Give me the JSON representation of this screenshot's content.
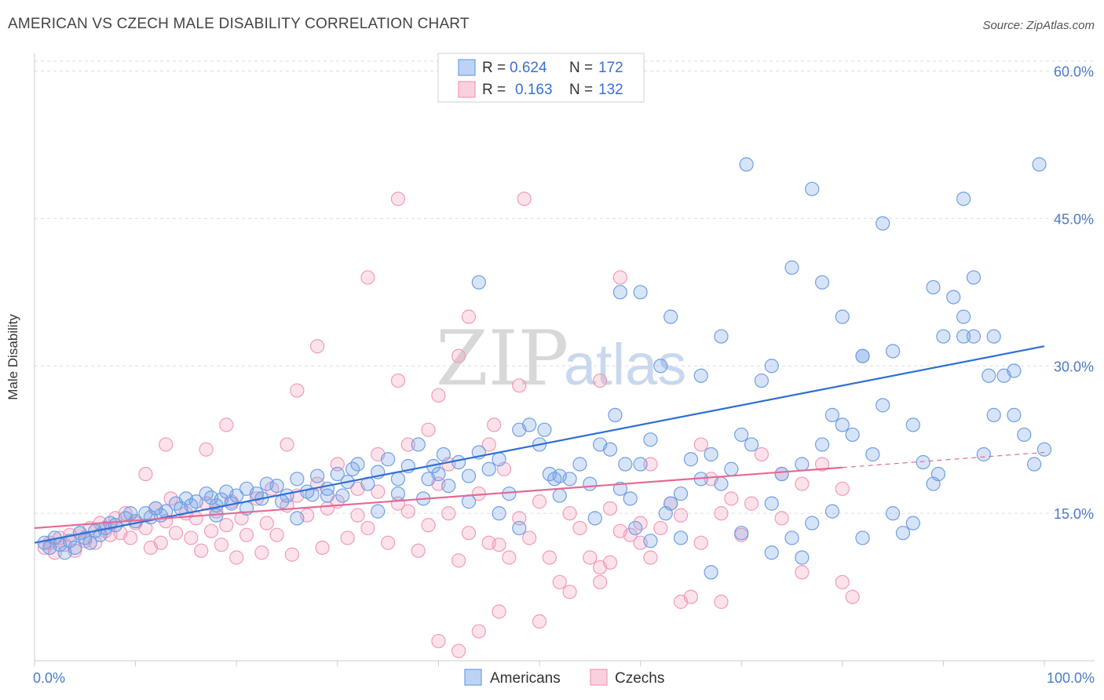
{
  "title": "AMERICAN VS CZECH MALE DISABILITY CORRELATION CHART",
  "source": "Source: ZipAtlas.com",
  "watermark": {
    "zip": "ZIP",
    "atlas": "atlas"
  },
  "colors": {
    "americans": "#6f9fe6",
    "czechs": "#f49ab7",
    "americans_line": "#2f6fd3",
    "czechs_line": "#e36a95",
    "grid": "#dddddd",
    "tick_text": "#4a7bc8"
  },
  "legend": {
    "rows": [
      {
        "r_label": "R =",
        "r_value": "0.624",
        "n_label": "N =",
        "n_value": "172"
      },
      {
        "r_label": "R =",
        "r_value": "0.163",
        "n_label": "N =",
        "n_value": "132"
      }
    ]
  },
  "chart_data": {
    "type": "scatter",
    "title": "AMERICAN VS CZECH MALE DISABILITY CORRELATION CHART",
    "xlabel": "",
    "ylabel": "Male Disability",
    "xlim": [
      0,
      100
    ],
    "ylim": [
      0,
      61
    ],
    "x_tick_labels": [
      "0.0%",
      "100.0%"
    ],
    "y_ticks": [
      15,
      30,
      45,
      60
    ],
    "y_tick_labels": [
      "15.0%",
      "30.0%",
      "45.0%",
      "60.0%"
    ],
    "grid": true,
    "legend_position": "top-center",
    "series": [
      {
        "name": "Americans",
        "trend": {
          "x0": 0,
          "y0": 12.0,
          "x1": 100,
          "y1": 32.0,
          "dashed_from": null
        },
        "points": [
          [
            1,
            12
          ],
          [
            1.5,
            11.5
          ],
          [
            2,
            12.5
          ],
          [
            2.5,
            11.8
          ],
          [
            3,
            11
          ],
          [
            3.5,
            12.2
          ],
          [
            4,
            11.5
          ],
          [
            4.5,
            13
          ],
          [
            5,
            12.5
          ],
          [
            5.5,
            12
          ],
          [
            6,
            13.2
          ],
          [
            6.5,
            12.8
          ],
          [
            7,
            13.5
          ],
          [
            7.5,
            14
          ],
          [
            8,
            13.8
          ],
          [
            9,
            14.5
          ],
          [
            9.5,
            15
          ],
          [
            10,
            14.2
          ],
          [
            11,
            15
          ],
          [
            11.5,
            14.6
          ],
          [
            12,
            15.5
          ],
          [
            12.5,
            14.8
          ],
          [
            13,
            15.2
          ],
          [
            14,
            16
          ],
          [
            14.5,
            15.5
          ],
          [
            15,
            16.5
          ],
          [
            15.5,
            15.8
          ],
          [
            16,
            16.2
          ],
          [
            17,
            17
          ],
          [
            17.5,
            16.6
          ],
          [
            18,
            15.8
          ],
          [
            18.5,
            16.4
          ],
          [
            19,
            17.2
          ],
          [
            19.5,
            16
          ],
          [
            20,
            16.8
          ],
          [
            21,
            17.5
          ],
          [
            22,
            17
          ],
          [
            22.5,
            16.5
          ],
          [
            23,
            18
          ],
          [
            24,
            17.8
          ],
          [
            24.5,
            16.2
          ],
          [
            25,
            16.8
          ],
          [
            26,
            18.5
          ],
          [
            27,
            17.2
          ],
          [
            27.5,
            16.9
          ],
          [
            28,
            18.8
          ],
          [
            29,
            17.5
          ],
          [
            30,
            19
          ],
          [
            30.5,
            16.8
          ],
          [
            31,
            18.2
          ],
          [
            31.5,
            19.5
          ],
          [
            32,
            20
          ],
          [
            33,
            18
          ],
          [
            34,
            19.2
          ],
          [
            35,
            20.5
          ],
          [
            36,
            18.5
          ],
          [
            37,
            19.8
          ],
          [
            38,
            22
          ],
          [
            38.5,
            16.5
          ],
          [
            39,
            18.5
          ],
          [
            40,
            19
          ],
          [
            40.5,
            21
          ],
          [
            41,
            17.8
          ],
          [
            42,
            20.2
          ],
          [
            43,
            18.8
          ],
          [
            44,
            21.2
          ],
          [
            45,
            19.5
          ],
          [
            46,
            20.5
          ],
          [
            47,
            17
          ],
          [
            48,
            23.5
          ],
          [
            49,
            24
          ],
          [
            50,
            22
          ],
          [
            50.5,
            23.5
          ],
          [
            51,
            19
          ],
          [
            51.5,
            18.5
          ],
          [
            52,
            16.8
          ],
          [
            53,
            18.5
          ],
          [
            54,
            20
          ],
          [
            55,
            18
          ],
          [
            56,
            22
          ],
          [
            57,
            21.5
          ],
          [
            57.5,
            25
          ],
          [
            58,
            17.5
          ],
          [
            59,
            16.5
          ],
          [
            59.5,
            13.5
          ],
          [
            60,
            20
          ],
          [
            61,
            22.5
          ],
          [
            62,
            30
          ],
          [
            62.5,
            15
          ],
          [
            63,
            16
          ],
          [
            64,
            17
          ],
          [
            65,
            20.5
          ],
          [
            66,
            18.5
          ],
          [
            67,
            21
          ],
          [
            68,
            18
          ],
          [
            69,
            19.5
          ],
          [
            70,
            23
          ],
          [
            71,
            22
          ],
          [
            72,
            28.5
          ],
          [
            73,
            16
          ],
          [
            74,
            19
          ],
          [
            75,
            12.5
          ],
          [
            76,
            20
          ],
          [
            77,
            14
          ],
          [
            78,
            22
          ],
          [
            79,
            25
          ],
          [
            80,
            24
          ],
          [
            81,
            23
          ],
          [
            82,
            12.5
          ],
          [
            83,
            21
          ],
          [
            84,
            26
          ],
          [
            85,
            15
          ],
          [
            86,
            13
          ],
          [
            87,
            14
          ],
          [
            88,
            20.2
          ],
          [
            89,
            18
          ],
          [
            90,
            33
          ],
          [
            91,
            37
          ],
          [
            92,
            35
          ],
          [
            93,
            33
          ],
          [
            94,
            21
          ],
          [
            95,
            25
          ],
          [
            96,
            29
          ],
          [
            97,
            29.5
          ],
          [
            98,
            23
          ],
          [
            99,
            20
          ],
          [
            100,
            21.5
          ],
          [
            18,
            14.8
          ],
          [
            21,
            15.5
          ],
          [
            26,
            14.5
          ],
          [
            29,
            16.8
          ],
          [
            34,
            15.2
          ],
          [
            36,
            17
          ],
          [
            39.5,
            19.8
          ],
          [
            43,
            16.2
          ],
          [
            46,
            15
          ],
          [
            48,
            13.5
          ],
          [
            52,
            18.8
          ],
          [
            55.5,
            14.5
          ],
          [
            58.5,
            20
          ],
          [
            61,
            12.2
          ],
          [
            64,
            12.5
          ],
          [
            67,
            9
          ],
          [
            70,
            13
          ],
          [
            73,
            11
          ],
          [
            76,
            10.5
          ],
          [
            79,
            15.2
          ],
          [
            82,
            31
          ],
          [
            85,
            31.5
          ],
          [
            87,
            24
          ],
          [
            89.5,
            19
          ],
          [
            92,
            33
          ],
          [
            94.5,
            29
          ],
          [
            97,
            25
          ],
          [
            44,
            38.5
          ],
          [
            58,
            37.5
          ],
          [
            70.5,
            50.5
          ],
          [
            77,
            48
          ],
          [
            84,
            44.5
          ],
          [
            92,
            47
          ],
          [
            99.5,
            50.5
          ],
          [
            60,
            37.5
          ],
          [
            63,
            35
          ],
          [
            66,
            29
          ],
          [
            68,
            33
          ],
          [
            73,
            30
          ],
          [
            75,
            40
          ],
          [
            78,
            38.5
          ],
          [
            80,
            35
          ],
          [
            82,
            31
          ],
          [
            89,
            38
          ],
          [
            93,
            39
          ],
          [
            95,
            33
          ]
        ]
      },
      {
        "name": "Czechs",
        "trend": {
          "x0": 0,
          "y0": 13.5,
          "x1": 100,
          "y1": 21.2,
          "dashed_from": 80
        },
        "points": [
          [
            1,
            11.5
          ],
          [
            1.5,
            12
          ],
          [
            2,
            11
          ],
          [
            2.5,
            12.5
          ],
          [
            3,
            11.8
          ],
          [
            3.5,
            12.8
          ],
          [
            4,
            11.2
          ],
          [
            4.5,
            13
          ],
          [
            5,
            12.2
          ],
          [
            5.5,
            13.5
          ],
          [
            6,
            12
          ],
          [
            6.5,
            14
          ],
          [
            7,
            13.2
          ],
          [
            7.5,
            12.8
          ],
          [
            8,
            14.5
          ],
          [
            8.5,
            13
          ],
          [
            9,
            15
          ],
          [
            9.5,
            12.5
          ],
          [
            10,
            14
          ],
          [
            11,
            13.5
          ],
          [
            11.5,
            11.5
          ],
          [
            12,
            15.5
          ],
          [
            12.5,
            12
          ],
          [
            13,
            14.2
          ],
          [
            13.5,
            16.5
          ],
          [
            14,
            13
          ],
          [
            15,
            15
          ],
          [
            15.5,
            12.5
          ],
          [
            16,
            14.5
          ],
          [
            16.5,
            11.2
          ],
          [
            17,
            16
          ],
          [
            17.5,
            13.2
          ],
          [
            18,
            15.2
          ],
          [
            18.5,
            11.8
          ],
          [
            19,
            13.8
          ],
          [
            19.5,
            16.2
          ],
          [
            20,
            10.5
          ],
          [
            20.5,
            14.5
          ],
          [
            21,
            12.8
          ],
          [
            22,
            16.5
          ],
          [
            22.5,
            11
          ],
          [
            23,
            14
          ],
          [
            23.5,
            17.5
          ],
          [
            24,
            12.8
          ],
          [
            25,
            15.8
          ],
          [
            25.5,
            10.8
          ],
          [
            26,
            16.8
          ],
          [
            27,
            14.8
          ],
          [
            28,
            18
          ],
          [
            28.5,
            11.5
          ],
          [
            29,
            15.5
          ],
          [
            30,
            16.2
          ],
          [
            31,
            12.5
          ],
          [
            32,
            14.8
          ],
          [
            33,
            13.5
          ],
          [
            34,
            17.2
          ],
          [
            35,
            12
          ],
          [
            36,
            16
          ],
          [
            37,
            15.2
          ],
          [
            38,
            11.2
          ],
          [
            39,
            13.8
          ],
          [
            40,
            18
          ],
          [
            41,
            15
          ],
          [
            42,
            10.2
          ],
          [
            43,
            13
          ],
          [
            44,
            17
          ],
          [
            45,
            12
          ],
          [
            46,
            11.8
          ],
          [
            47,
            10.5
          ],
          [
            48,
            14.5
          ],
          [
            49,
            12.5
          ],
          [
            50,
            16.2
          ],
          [
            51,
            10.5
          ],
          [
            52,
            8
          ],
          [
            53,
            15
          ],
          [
            54,
            13.5
          ],
          [
            55,
            10.5
          ],
          [
            56,
            9.5
          ],
          [
            57,
            15.5
          ],
          [
            58,
            13.2
          ],
          [
            59,
            12.8
          ],
          [
            60,
            14
          ],
          [
            61,
            10.5
          ],
          [
            62,
            13.5
          ],
          [
            63,
            16
          ],
          [
            64,
            14.8
          ],
          [
            65,
            6.5
          ],
          [
            66,
            12
          ],
          [
            67,
            18.5
          ],
          [
            68,
            15
          ],
          [
            69,
            16.5
          ],
          [
            70,
            12.8
          ],
          [
            72,
            21
          ],
          [
            74,
            14.5
          ],
          [
            76,
            18
          ],
          [
            78,
            20
          ],
          [
            80,
            17.5
          ],
          [
            11,
            19
          ],
          [
            13,
            22
          ],
          [
            17,
            21.5
          ],
          [
            19,
            24
          ],
          [
            25,
            22
          ],
          [
            26,
            27.5
          ],
          [
            28,
            32
          ],
          [
            30,
            20
          ],
          [
            32,
            17.5
          ],
          [
            33,
            39
          ],
          [
            34,
            21
          ],
          [
            36,
            28.5
          ],
          [
            37,
            22
          ],
          [
            39,
            23.5
          ],
          [
            40,
            27
          ],
          [
            41,
            20
          ],
          [
            42,
            31
          ],
          [
            43,
            35
          ],
          [
            45,
            22
          ],
          [
            45.5,
            24
          ],
          [
            46.5,
            19.5
          ],
          [
            48,
            28
          ],
          [
            36,
            47
          ],
          [
            48.5,
            47
          ],
          [
            56,
            28.5
          ],
          [
            58,
            39
          ],
          [
            61,
            20
          ],
          [
            66,
            22
          ],
          [
            74,
            19
          ],
          [
            71,
            16
          ],
          [
            76,
            9
          ],
          [
            80,
            8
          ],
          [
            81,
            6.5
          ],
          [
            40,
            2
          ],
          [
            42,
            1
          ],
          [
            44,
            3
          ],
          [
            46,
            5
          ],
          [
            50,
            4
          ],
          [
            53,
            7
          ],
          [
            56,
            8
          ],
          [
            57,
            10
          ],
          [
            60,
            12
          ],
          [
            64,
            6
          ],
          [
            68,
            6
          ]
        ]
      }
    ]
  },
  "bottom_legend": [
    {
      "label": "Americans"
    },
    {
      "label": "Czechs"
    }
  ]
}
